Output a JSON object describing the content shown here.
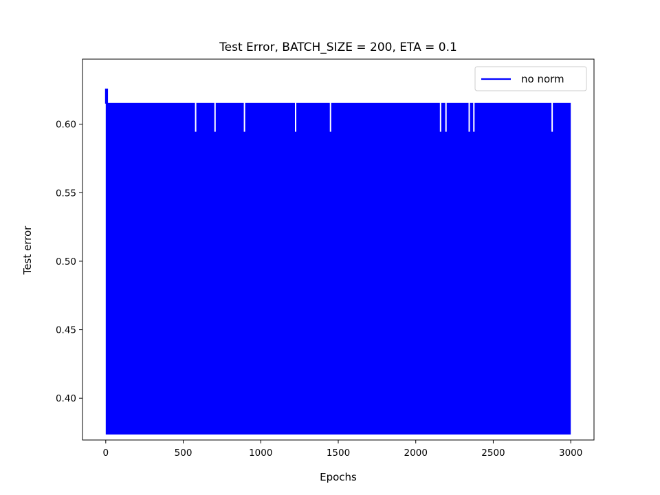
{
  "chart_data": {
    "type": "line",
    "title": "Test Error, BATCH_SIZE = 200, ETA = 0.1",
    "xlabel": "Epochs",
    "ylabel": "Test error",
    "xlim": [
      -150,
      3150
    ],
    "ylim": [
      0.3695,
      0.6475
    ],
    "xticks": [
      0,
      500,
      1000,
      1500,
      2000,
      2500,
      3000
    ],
    "xtick_labels": [
      "0",
      "500",
      "1000",
      "1500",
      "2000",
      "2500",
      "3000"
    ],
    "yticks": [
      0.4,
      0.45,
      0.5,
      0.55,
      0.6
    ],
    "ytick_labels": [
      "0.40",
      "0.45",
      "0.50",
      "0.55",
      "0.60"
    ],
    "grid": false,
    "legend_position": "top-right",
    "series": [
      {
        "name": "no norm",
        "color": "#0000ff",
        "x_range": [
          0,
          3000
        ],
        "oscillation_low": 0.3735,
        "oscillation_high": 0.6155,
        "initial_peak": {
          "x_range": [
            0,
            10
          ],
          "y": 0.626
        },
        "dip_to": 0.5945,
        "dips_at": [
          580,
          705,
          895,
          1225,
          1450,
          2160,
          2195,
          2345,
          2375,
          2880
        ]
      }
    ]
  }
}
